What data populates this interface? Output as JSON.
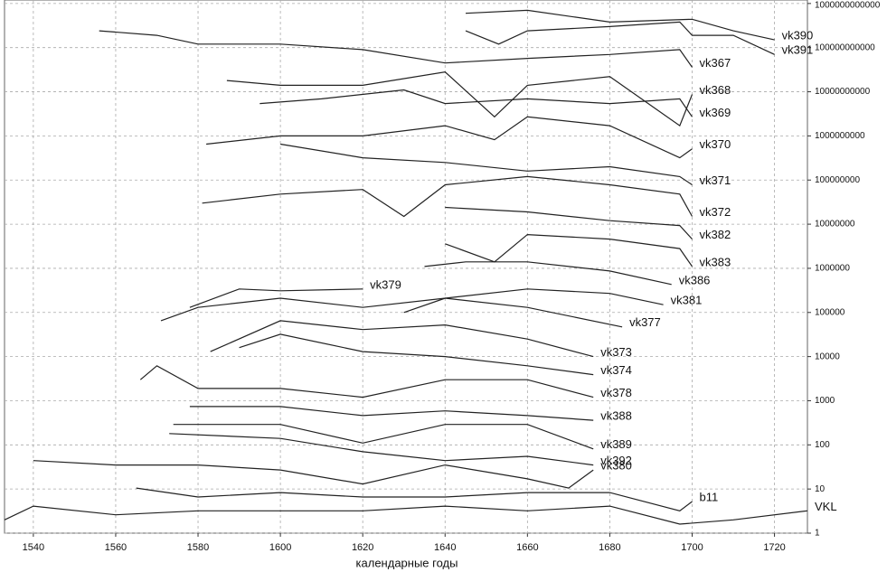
{
  "chart_data": {
    "type": "line",
    "x_label": "календарные годы",
    "log_y": true,
    "grid": true,
    "color": "#222",
    "xlim": [
      1533,
      1728
    ],
    "xticks": [
      1540,
      1560,
      1580,
      1600,
      1620,
      1640,
      1660,
      1680,
      1700,
      1720
    ],
    "ylim": [
      1,
      1200000000000
    ],
    "yticks": [
      1,
      10,
      100,
      1000,
      10000,
      100000,
      1000000,
      10000000,
      100000000,
      1000000000,
      10000000000,
      100000000000,
      1000000000000
    ],
    "series": [
      {
        "name": "vk390",
        "x": [
          1645,
          1660,
          1680,
          1700,
          1710,
          1720
        ],
        "values": [
          600000000000,
          700000000000,
          380000000000,
          440000000000,
          240000000000,
          150000000000
        ]
      },
      {
        "name": "vk391",
        "x": [
          1645,
          1653,
          1660,
          1680,
          1697,
          1700,
          1710,
          1720
        ],
        "values": [
          240000000000,
          120000000000,
          240000000000,
          300000000000,
          380000000000,
          190000000000,
          190000000000,
          70000000000
        ]
      },
      {
        "name": "vk367",
        "x": [
          1556,
          1570,
          1580,
          1600,
          1620,
          1640,
          1660,
          1680,
          1697,
          1700
        ],
        "values": [
          240000000000,
          190000000000,
          120000000000,
          120000000000,
          90000000000,
          45000000000,
          57000000000,
          70000000000,
          90000000000,
          36000000000
        ]
      },
      {
        "name": "vk368",
        "x": [
          1587,
          1600,
          1620,
          1640,
          1652,
          1660,
          1680,
          1697,
          1700
        ],
        "values": [
          18000000000,
          14000000000,
          14000000000,
          28000000000,
          2700000000,
          14000000000,
          22000000000,
          1700000000,
          8700000000
        ]
      },
      {
        "name": "vk369",
        "x": [
          1595,
          1610,
          1630,
          1640,
          1660,
          1680,
          1697,
          1700
        ],
        "values": [
          5400000000,
          6900000000,
          11000000000,
          5400000000,
          6900000000,
          5400000000,
          6900000000,
          2700000000
        ]
      },
      {
        "name": "vk370",
        "x": [
          1582,
          1600,
          1620,
          1640,
          1652,
          1660,
          1680,
          1697,
          1700
        ],
        "values": [
          650000000,
          1000000000,
          1000000000,
          1700000000,
          820000000,
          2700000000,
          1700000000,
          320000000,
          510000000
        ]
      },
      {
        "name": "vk371",
        "x": [
          1600,
          1620,
          1640,
          1660,
          1680,
          1697,
          1700
        ],
        "values": [
          650000000,
          320000000,
          250000000,
          160000000,
          200000000,
          120000000,
          78000000
        ]
      },
      {
        "name": "vk372",
        "x": [
          1581,
          1600,
          1620,
          1630,
          1640,
          1660,
          1680,
          1697,
          1700
        ],
        "values": [
          30000000,
          48000000,
          61000000,
          15000000,
          78000000,
          120000000,
          78000000,
          48000000,
          15000000
        ]
      },
      {
        "name": "vk382",
        "x": [
          1640,
          1660,
          1680,
          1697,
          1700
        ],
        "values": [
          24000000,
          19000000,
          12000000,
          9300000,
          4600000
        ]
      },
      {
        "name": "vk383",
        "x": [
          1640,
          1652,
          1660,
          1680,
          1697,
          1700
        ],
        "values": [
          3600000,
          1400000,
          5800000,
          4600000,
          2800000,
          1100000
        ]
      },
      {
        "name": "vk386",
        "x": [
          1635,
          1645,
          1660,
          1680,
          1695
        ],
        "values": [
          1100000,
          1400000,
          1400000,
          870000,
          430000
        ]
      },
      {
        "name": "vk381",
        "x": [
          1630,
          1640,
          1660,
          1680,
          1693
        ],
        "values": [
          100000,
          210000,
          340000,
          270000,
          150000
        ]
      },
      {
        "name": "vk379",
        "x": [
          1578,
          1590,
          1600,
          1620
        ],
        "values": [
          130000,
          340000,
          310000,
          340000
        ]
      },
      {
        "name": "vk377",
        "x": [
          1571,
          1580,
          1600,
          1620,
          1640,
          1660,
          1683
        ],
        "values": [
          65000,
          130000,
          210000,
          130000,
          210000,
          130000,
          47000
        ]
      },
      {
        "name": "vk373",
        "x": [
          1583,
          1600,
          1620,
          1640,
          1660,
          1676
        ],
        "values": [
          13000,
          65000,
          41000,
          52000,
          25000,
          10000
        ]
      },
      {
        "name": "vk374",
        "x": [
          1590,
          1600,
          1620,
          1640,
          1660,
          1676
        ],
        "values": [
          16000,
          32000,
          13000,
          10000,
          6200,
          3900
        ]
      },
      {
        "name": "vk378",
        "x": [
          1566,
          1570,
          1580,
          1600,
          1620,
          1640,
          1660,
          1676
        ],
        "values": [
          3000,
          6200,
          1900,
          1900,
          1200,
          3000,
          3000,
          1200
        ]
      },
      {
        "name": "vk388",
        "x": [
          1578,
          1600,
          1620,
          1640,
          1660,
          1676
        ],
        "values": [
          740,
          740,
          460,
          590,
          460,
          360
        ]
      },
      {
        "name": "vk389",
        "x": [
          1574,
          1600,
          1620,
          1640,
          1660,
          1676
        ],
        "values": [
          290,
          290,
          110,
          290,
          290,
          81
        ]
      },
      {
        "name": "vk392",
        "x": [
          1573,
          1600,
          1620,
          1640,
          1660,
          1676
        ],
        "values": [
          180,
          140,
          70,
          44,
          55,
          35
        ]
      },
      {
        "name": "vk380",
        "x": [
          1540,
          1560,
          1580,
          1600,
          1620,
          1640,
          1660,
          1670,
          1676
        ],
        "values": [
          44,
          35,
          35,
          27,
          13,
          35,
          17,
          10.5,
          27
        ]
      },
      {
        "name": "b11",
        "x": [
          1565,
          1580,
          1600,
          1620,
          1640,
          1660,
          1680,
          1697,
          1700
        ],
        "values": [
          10.5,
          6.6,
          8.3,
          6.6,
          6.6,
          8.3,
          8.3,
          3.2,
          5.2
        ]
      },
      {
        "name": "VKL",
        "x": [
          1533,
          1540,
          1560,
          1580,
          1600,
          1620,
          1640,
          1660,
          1680,
          1697,
          1710,
          1728
        ],
        "values": [
          2,
          4.1,
          2.6,
          3.2,
          3.2,
          3.2,
          4.1,
          3.2,
          4.1,
          1.6,
          2,
          3.2
        ]
      }
    ]
  }
}
